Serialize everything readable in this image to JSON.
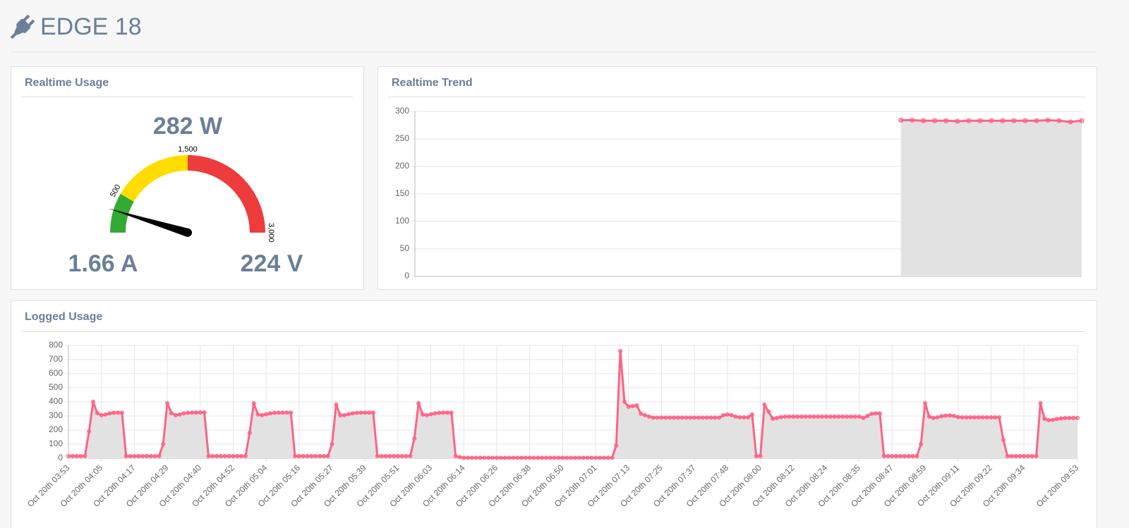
{
  "header": {
    "title": "EDGE 18"
  },
  "realtime_usage": {
    "title": "Realtime Usage",
    "current": "1.66 A",
    "voltage": "224 V",
    "gauge": {
      "type": "gauge",
      "value": 282,
      "value_label": "282 W",
      "lim": [
        0,
        3000
      ],
      "bands": [
        {
          "from": 0,
          "to": 500,
          "color": "#33aa33"
        },
        {
          "from": 500,
          "to": 1500,
          "color": "#ffdd00"
        },
        {
          "from": 1500,
          "to": 3000,
          "color": "#ee3b3b"
        }
      ],
      "ticks": [
        500,
        {
          "value": 1500,
          "label": "1,500"
        },
        {
          "value": 3000,
          "label": "3,000"
        }
      ]
    }
  },
  "realtime_trend": {
    "title": "Realtime Trend",
    "chart": {
      "type": "line",
      "color": "#ff6384",
      "fill": "#e2e2e2",
      "grid": true,
      "ylim": [
        0,
        300
      ],
      "yticks": [
        0,
        50,
        100,
        150,
        200,
        250,
        300
      ],
      "values": [
        null,
        null,
        null,
        null,
        null,
        null,
        null,
        null,
        null,
        null,
        null,
        null,
        null,
        null,
        null,
        null,
        null,
        null,
        null,
        null,
        null,
        null,
        null,
        null,
        null,
        null,
        null,
        null,
        null,
        null,
        null,
        null,
        null,
        null,
        null,
        null,
        null,
        null,
        null,
        null,
        null,
        null,
        null,
        284,
        284,
        283,
        283,
        283,
        282,
        283,
        283,
        283,
        283,
        283,
        283,
        283,
        284,
        283,
        281,
        283
      ]
    }
  },
  "logged_usage": {
    "title": "Logged Usage",
    "chart": {
      "type": "line",
      "color": "#ff6384",
      "fill": "#e2e2e2",
      "grid": true,
      "xgrid": true,
      "ylim": [
        0,
        800
      ],
      "yticks": [
        0,
        100,
        200,
        300,
        400,
        500,
        600,
        700,
        800
      ],
      "categories": [
        "Oct 20th 03:53",
        null,
        null,
        null,
        null,
        null,
        null,
        null,
        "Oct 20th 04:05",
        null,
        null,
        null,
        null,
        null,
        null,
        null,
        "Oct 20th 04:17",
        null,
        null,
        null,
        null,
        null,
        null,
        null,
        "Oct 20th 04:29",
        null,
        null,
        null,
        null,
        null,
        null,
        null,
        "Oct 20th 04:40",
        null,
        null,
        null,
        null,
        null,
        null,
        null,
        "Oct 20th 04:52",
        null,
        null,
        null,
        null,
        null,
        null,
        null,
        "Oct 20th 05:04",
        null,
        null,
        null,
        null,
        null,
        null,
        null,
        "Oct 20th 05:16",
        null,
        null,
        null,
        null,
        null,
        null,
        null,
        "Oct 20th 05:27",
        null,
        null,
        null,
        null,
        null,
        null,
        null,
        "Oct 20th 05:39",
        null,
        null,
        null,
        null,
        null,
        null,
        null,
        "Oct 20th 05:51",
        null,
        null,
        null,
        null,
        null,
        null,
        null,
        "Oct 20th 06:03",
        null,
        null,
        null,
        null,
        null,
        null,
        null,
        "Oct 20th 06:14",
        null,
        null,
        null,
        null,
        null,
        null,
        null,
        "Oct 20th 06:26",
        null,
        null,
        null,
        null,
        null,
        null,
        null,
        "Oct 20th 06:38",
        null,
        null,
        null,
        null,
        null,
        null,
        null,
        "Oct 20th 06:50",
        null,
        null,
        null,
        null,
        null,
        null,
        null,
        "Oct 20th 07:01",
        null,
        null,
        null,
        null,
        null,
        null,
        null,
        "Oct 20th 07:13",
        null,
        null,
        null,
        null,
        null,
        null,
        null,
        "Oct 20th 07:25",
        null,
        null,
        null,
        null,
        null,
        null,
        null,
        "Oct 20th 07:37",
        null,
        null,
        null,
        null,
        null,
        null,
        null,
        "Oct 20th 07:48",
        null,
        null,
        null,
        null,
        null,
        null,
        null,
        "Oct 20th 08:00",
        null,
        null,
        null,
        null,
        null,
        null,
        null,
        "Oct 20th 08:12",
        null,
        null,
        null,
        null,
        null,
        null,
        null,
        "Oct 20th 08:24",
        null,
        null,
        null,
        null,
        null,
        null,
        null,
        "Oct 20th 08:35",
        null,
        null,
        null,
        null,
        null,
        null,
        null,
        "Oct 20th 08:47",
        null,
        null,
        null,
        null,
        null,
        null,
        null,
        "Oct 20th 08:59",
        null,
        null,
        null,
        null,
        null,
        null,
        null,
        "Oct 20th 09:11",
        null,
        null,
        null,
        null,
        null,
        null,
        null,
        "Oct 20th 09:22",
        null,
        null,
        null,
        null,
        null,
        null,
        null,
        "Oct 20th 09:34",
        null,
        null,
        null,
        null,
        null,
        null,
        null,
        null,
        null,
        null,
        null,
        null,
        "Oct 20th 09:53"
      ],
      "values": [
        15,
        15,
        15,
        15,
        15,
        190,
        400,
        320,
        305,
        310,
        318,
        322,
        323,
        323,
        15,
        15,
        15,
        15,
        15,
        15,
        15,
        15,
        15,
        100,
        390,
        320,
        305,
        310,
        318,
        322,
        323,
        324,
        325,
        325,
        15,
        15,
        15,
        15,
        15,
        15,
        15,
        15,
        15,
        15,
        180,
        390,
        310,
        305,
        312,
        318,
        322,
        323,
        324,
        324,
        323,
        15,
        15,
        15,
        15,
        15,
        15,
        15,
        15,
        15,
        100,
        380,
        305,
        305,
        312,
        318,
        322,
        323,
        323,
        323,
        323,
        15,
        15,
        15,
        15,
        15,
        15,
        15,
        15,
        15,
        140,
        390,
        310,
        305,
        312,
        318,
        322,
        323,
        323,
        323,
        15,
        8,
        3,
        3,
        3,
        3,
        3,
        3,
        3,
        3,
        3,
        3,
        3,
        3,
        3,
        3,
        3,
        3,
        3,
        3,
        3,
        3,
        3,
        3,
        3,
        3,
        3,
        3,
        3,
        3,
        3,
        3,
        3,
        3,
        3,
        3,
        3,
        3,
        3,
        90,
        760,
        400,
        365,
        370,
        375,
        315,
        305,
        295,
        288,
        288,
        288,
        288,
        288,
        288,
        288,
        288,
        288,
        288,
        288,
        288,
        288,
        288,
        288,
        288,
        288,
        305,
        310,
        305,
        295,
        290,
        290,
        290,
        310,
        15,
        15,
        380,
        330,
        280,
        285,
        292,
        295,
        295,
        295,
        295,
        295,
        295,
        295,
        295,
        295,
        295,
        295,
        295,
        295,
        295,
        295,
        295,
        295,
        295,
        295,
        285,
        300,
        315,
        318,
        318,
        15,
        15,
        15,
        15,
        15,
        15,
        15,
        15,
        15,
        100,
        390,
        295,
        285,
        290,
        298,
        302,
        303,
        300,
        292,
        290,
        290,
        290,
        290,
        290,
        290,
        290,
        290,
        290,
        290,
        130,
        15,
        15,
        15,
        15,
        15,
        15,
        15,
        15,
        390,
        280,
        270,
        272,
        278,
        282,
        285,
        285,
        285,
        285
      ]
    }
  }
}
